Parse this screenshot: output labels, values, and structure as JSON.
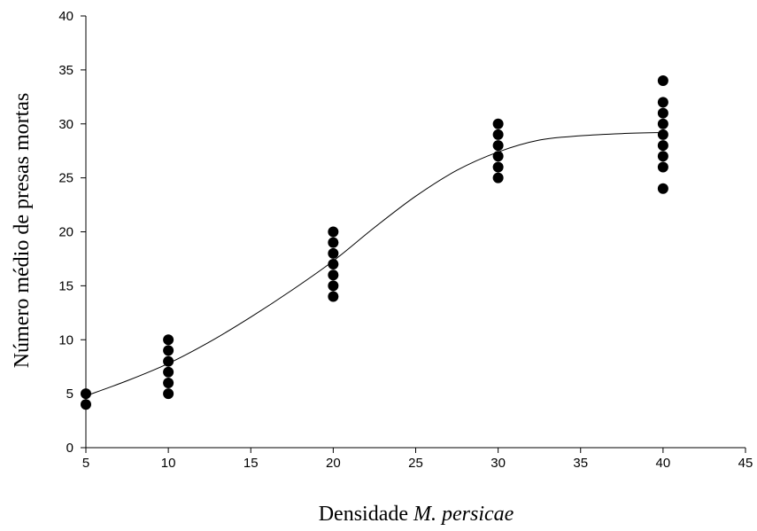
{
  "chart_data": {
    "type": "scatter",
    "title": "",
    "xlabel_prefix": "Densidade",
    "xlabel_italic": "M. persicae",
    "ylabel": "Número médio de presas mortas",
    "xlim": [
      5,
      45
    ],
    "ylim": [
      0,
      40
    ],
    "xticks": [
      5,
      10,
      15,
      20,
      25,
      30,
      35,
      40,
      45
    ],
    "yticks": [
      0,
      5,
      10,
      15,
      20,
      25,
      30,
      35,
      40
    ],
    "grid": false,
    "legend": "none",
    "points": [
      {
        "x": 5,
        "y": 4
      },
      {
        "x": 5,
        "y": 5
      },
      {
        "x": 10,
        "y": 5
      },
      {
        "x": 10,
        "y": 6
      },
      {
        "x": 10,
        "y": 7
      },
      {
        "x": 10,
        "y": 8
      },
      {
        "x": 10,
        "y": 9
      },
      {
        "x": 10,
        "y": 10
      },
      {
        "x": 20,
        "y": 14
      },
      {
        "x": 20,
        "y": 15
      },
      {
        "x": 20,
        "y": 16
      },
      {
        "x": 20,
        "y": 17
      },
      {
        "x": 20,
        "y": 18
      },
      {
        "x": 20,
        "y": 19
      },
      {
        "x": 20,
        "y": 20
      },
      {
        "x": 30,
        "y": 25
      },
      {
        "x": 30,
        "y": 26
      },
      {
        "x": 30,
        "y": 27
      },
      {
        "x": 30,
        "y": 28
      },
      {
        "x": 30,
        "y": 29
      },
      {
        "x": 30,
        "y": 30
      },
      {
        "x": 40,
        "y": 24
      },
      {
        "x": 40,
        "y": 26
      },
      {
        "x": 40,
        "y": 27
      },
      {
        "x": 40,
        "y": 28
      },
      {
        "x": 40,
        "y": 29
      },
      {
        "x": 40,
        "y": 30
      },
      {
        "x": 40,
        "y": 31
      },
      {
        "x": 40,
        "y": 32
      },
      {
        "x": 40,
        "y": 34
      }
    ],
    "fitted_curve": {
      "x": [
        5,
        7.5,
        10,
        12.5,
        15,
        17.5,
        20,
        22.5,
        25,
        27.5,
        30,
        32.5,
        35,
        37.5,
        40
      ],
      "y": [
        4.8,
        6.2,
        7.8,
        9.8,
        12.1,
        14.6,
        17.3,
        20.4,
        23.3,
        25.7,
        27.4,
        28.5,
        28.9,
        29.1,
        29.2
      ]
    },
    "colors": {
      "points": "#000000",
      "curve": "#000000",
      "axes": "#000000"
    }
  }
}
